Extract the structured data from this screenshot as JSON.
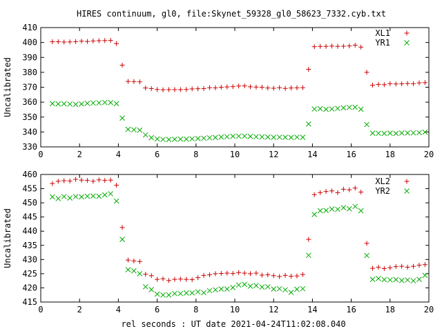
{
  "title": "HIRES continuum, gl0, file:Skynet_59328_gl0_58623_7332.cyb.txt",
  "xlabel": "rel seconds : UT date 2021-04-24T11:02:08.040",
  "chart_data": [
    {
      "type": "scatter",
      "ylabel": "Uncalibrated",
      "xlim": [
        0,
        20
      ],
      "ylim": [
        330,
        410
      ],
      "xticks": [
        0,
        2,
        4,
        6,
        8,
        10,
        12,
        14,
        16,
        18,
        20
      ],
      "yticks": [
        330,
        340,
        350,
        360,
        370,
        380,
        390,
        400,
        410
      ],
      "grid": false,
      "legend": "top-right",
      "x": [
        0.6,
        0.9,
        1.2,
        1.5,
        1.8,
        2.1,
        2.4,
        2.7,
        3.0,
        3.3,
        3.6,
        3.9,
        4.2,
        4.5,
        4.8,
        5.1,
        5.4,
        5.7,
        6.0,
        6.3,
        6.6,
        6.9,
        7.2,
        7.5,
        7.8,
        8.1,
        8.4,
        8.7,
        9.0,
        9.3,
        9.6,
        9.9,
        10.2,
        10.5,
        10.8,
        11.1,
        11.4,
        11.7,
        12.0,
        12.3,
        12.6,
        12.9,
        13.2,
        13.5,
        13.8,
        14.1,
        14.4,
        14.7,
        15.0,
        15.3,
        15.6,
        15.9,
        16.2,
        16.5,
        16.8,
        17.1,
        17.4,
        17.7,
        18.0,
        18.3,
        18.6,
        18.9,
        19.2,
        19.5,
        19.8
      ],
      "series": [
        {
          "name": "XL1",
          "marker": "plus",
          "color": "#cc0000",
          "values": [
            400.5,
            400.5,
            400.3,
            400.4,
            400.6,
            400.9,
            400.7,
            401.0,
            401.2,
            401.3,
            401.4,
            399.3,
            384.8,
            373.9,
            373.8,
            373.6,
            369.5,
            369.1,
            368.5,
            368.3,
            368.4,
            368.4,
            368.4,
            368.5,
            368.9,
            369.0,
            369.1,
            369.7,
            369.6,
            370.0,
            370.2,
            370.4,
            370.8,
            370.9,
            370.3,
            370.1,
            370.0,
            369.5,
            369.3,
            369.7,
            369.2,
            369.5,
            369.6,
            369.7,
            382.0,
            397.2,
            397.4,
            397.4,
            397.6,
            397.4,
            397.5,
            397.7,
            398.2,
            396.9,
            380.0,
            371.4,
            371.9,
            371.7,
            372.4,
            372.2,
            372.3,
            372.5,
            372.4,
            372.9,
            373.1
          ]
        },
        {
          "name": "YR1",
          "marker": "cross",
          "color": "#00aa00",
          "values": [
            359.0,
            358.8,
            358.9,
            358.7,
            358.5,
            358.8,
            359.2,
            359.4,
            359.5,
            359.8,
            359.7,
            359.0,
            349.3,
            341.8,
            341.5,
            341.2,
            338.0,
            336.2,
            335.3,
            335.0,
            334.9,
            335.1,
            335.2,
            335.2,
            335.4,
            335.6,
            335.8,
            336.1,
            336.3,
            336.6,
            336.8,
            337.1,
            337.2,
            337.2,
            337.0,
            336.8,
            336.7,
            336.6,
            336.4,
            336.5,
            336.4,
            336.3,
            336.5,
            336.4,
            345.3,
            355.4,
            355.6,
            355.2,
            355.4,
            355.8,
            356.2,
            356.5,
            356.6,
            355.2,
            345.0,
            339.2,
            339.1,
            339.0,
            339.2,
            339.0,
            339.3,
            339.3,
            339.4,
            339.5,
            339.9
          ]
        }
      ]
    },
    {
      "type": "scatter",
      "ylabel": "Uncalibrated",
      "xlim": [
        0,
        20
      ],
      "ylim": [
        415,
        460
      ],
      "xticks": [
        0,
        2,
        4,
        6,
        8,
        10,
        12,
        14,
        16,
        18,
        20
      ],
      "yticks": [
        415,
        420,
        425,
        430,
        435,
        440,
        445,
        450,
        455,
        460
      ],
      "grid": false,
      "legend": "top-right",
      "x": [
        0.6,
        0.9,
        1.2,
        1.5,
        1.8,
        2.1,
        2.4,
        2.7,
        3.0,
        3.3,
        3.6,
        3.9,
        4.2,
        4.5,
        4.8,
        5.1,
        5.4,
        5.7,
        6.0,
        6.3,
        6.6,
        6.9,
        7.2,
        7.5,
        7.8,
        8.1,
        8.4,
        8.7,
        9.0,
        9.3,
        9.6,
        9.9,
        10.2,
        10.5,
        10.8,
        11.1,
        11.4,
        11.7,
        12.0,
        12.3,
        12.6,
        12.9,
        13.2,
        13.5,
        13.8,
        14.1,
        14.4,
        14.7,
        15.0,
        15.3,
        15.6,
        15.9,
        16.2,
        16.5,
        16.8,
        17.1,
        17.4,
        17.7,
        18.0,
        18.3,
        18.6,
        18.9,
        19.2,
        19.5,
        19.8
      ],
      "series": [
        {
          "name": "XL2",
          "marker": "plus",
          "color": "#cc0000",
          "values": [
            456.8,
            457.6,
            457.8,
            457.7,
            458.3,
            458.0,
            457.9,
            457.6,
            458.1,
            457.9,
            458.0,
            456.2,
            441.3,
            429.8,
            429.5,
            429.3,
            424.8,
            424.3,
            423.0,
            423.2,
            422.6,
            423.0,
            423.1,
            423.0,
            422.9,
            423.6,
            424.4,
            424.6,
            425.0,
            425.1,
            425.2,
            425.1,
            425.4,
            425.2,
            425.0,
            425.2,
            424.5,
            424.6,
            424.3,
            424.0,
            424.4,
            424.1,
            424.2,
            424.7,
            437.1,
            452.9,
            453.6,
            454.0,
            454.2,
            453.6,
            454.8,
            454.6,
            455.2,
            453.8,
            435.7,
            426.9,
            427.3,
            426.8,
            427.1,
            427.5,
            427.6,
            427.3,
            427.6,
            428.0,
            428.2
          ]
        },
        {
          "name": "YR2",
          "marker": "cross",
          "color": "#00aa00",
          "values": [
            452.1,
            451.5,
            452.2,
            451.7,
            452.2,
            452.1,
            452.3,
            452.4,
            452.3,
            452.8,
            453.2,
            450.6,
            437.1,
            426.4,
            426.0,
            425.0,
            420.4,
            419.4,
            417.8,
            417.5,
            417.5,
            418.0,
            418.0,
            418.2,
            418.2,
            418.6,
            418.3,
            419.0,
            419.3,
            419.6,
            419.6,
            420.1,
            421.0,
            421.2,
            420.6,
            420.8,
            420.3,
            420.4,
            419.6,
            419.7,
            419.3,
            418.4,
            419.5,
            419.7,
            431.5,
            445.9,
            447.2,
            447.3,
            447.8,
            447.7,
            448.3,
            447.9,
            448.7,
            447.2,
            431.4,
            423.0,
            423.3,
            422.9,
            422.8,
            422.9,
            422.6,
            422.8,
            422.5,
            423.0,
            424.4
          ]
        }
      ]
    }
  ]
}
